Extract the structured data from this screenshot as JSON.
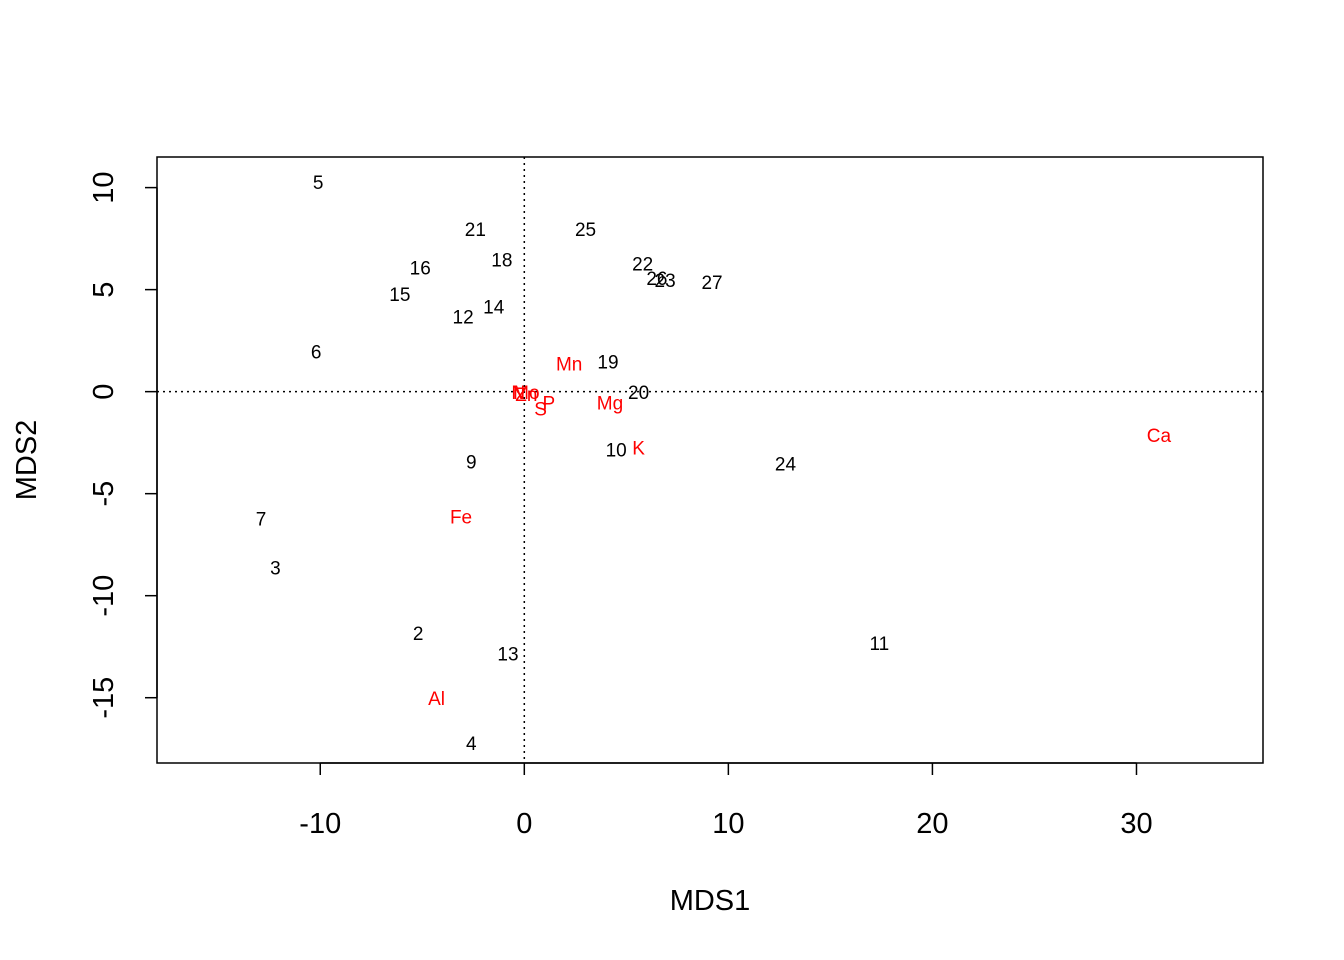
{
  "chart_data": {
    "type": "scatter",
    "title": "",
    "xlabel": "MDS1",
    "ylabel": "MDS2",
    "xlim": [
      -18,
      36.2
    ],
    "ylim": [
      -18.2,
      11.5
    ],
    "xticks": [
      -10,
      0,
      10,
      20,
      30
    ],
    "yticks": [
      -15,
      -10,
      -5,
      0,
      5,
      10
    ],
    "reference_lines": {
      "x": 0,
      "y": 0,
      "style": "dotted"
    },
    "colors": {
      "sites": "#000000",
      "species": "#ff0000"
    },
    "series": [
      {
        "kind": "sites",
        "color": "#000000",
        "points": [
          {
            "label": "5",
            "x": -10.1,
            "y": 10.2
          },
          {
            "label": "21",
            "x": -2.4,
            "y": 7.9
          },
          {
            "label": "25",
            "x": 3.0,
            "y": 7.9
          },
          {
            "label": "18",
            "x": -1.1,
            "y": 6.4
          },
          {
            "label": "16",
            "x": -5.1,
            "y": 6.0
          },
          {
            "label": "22",
            "x": 5.8,
            "y": 6.2
          },
          {
            "label": "26",
            "x": 6.5,
            "y": 5.5
          },
          {
            "label": "23",
            "x": 6.9,
            "y": 5.4
          },
          {
            "label": "27",
            "x": 9.2,
            "y": 5.3
          },
          {
            "label": "15",
            "x": -6.1,
            "y": 4.7
          },
          {
            "label": "14",
            "x": -1.5,
            "y": 4.1
          },
          {
            "label": "12",
            "x": -3.0,
            "y": 3.6
          },
          {
            "label": "6",
            "x": -10.2,
            "y": 1.9
          },
          {
            "label": "19",
            "x": 4.1,
            "y": 1.4
          },
          {
            "label": "20",
            "x": 5.6,
            "y": -0.1
          },
          {
            "label": "10",
            "x": 4.5,
            "y": -2.9
          },
          {
            "label": "24",
            "x": 12.8,
            "y": -3.6
          },
          {
            "label": "9",
            "x": -2.6,
            "y": -3.5
          },
          {
            "label": "7",
            "x": -12.9,
            "y": -6.3
          },
          {
            "label": "3",
            "x": -12.2,
            "y": -8.7
          },
          {
            "label": "2",
            "x": -5.2,
            "y": -11.9
          },
          {
            "label": "13",
            "x": -0.8,
            "y": -12.9
          },
          {
            "label": "11",
            "x": 17.4,
            "y": -12.4
          },
          {
            "label": "4",
            "x": -2.6,
            "y": -17.3
          }
        ]
      },
      {
        "kind": "species",
        "color": "#ff0000",
        "points": [
          {
            "label": "Mn",
            "x": 2.2,
            "y": 1.3
          },
          {
            "label": "N",
            "x": -0.3,
            "y": -0.1
          },
          {
            "label": "Mo",
            "x": 0.1,
            "y": -0.1
          },
          {
            "label": "Zn",
            "x": 0.1,
            "y": -0.2
          },
          {
            "label": "S",
            "x": 0.8,
            "y": -0.9
          },
          {
            "label": "P",
            "x": 1.2,
            "y": -0.6
          },
          {
            "label": "Mg",
            "x": 4.2,
            "y": -0.6
          },
          {
            "label": "K",
            "x": 5.6,
            "y": -2.8
          },
          {
            "label": "Ca",
            "x": 31.1,
            "y": -2.2
          },
          {
            "label": "Fe",
            "x": -3.1,
            "y": -6.2
          },
          {
            "label": "Al",
            "x": -4.3,
            "y": -15.1
          }
        ]
      }
    ]
  }
}
